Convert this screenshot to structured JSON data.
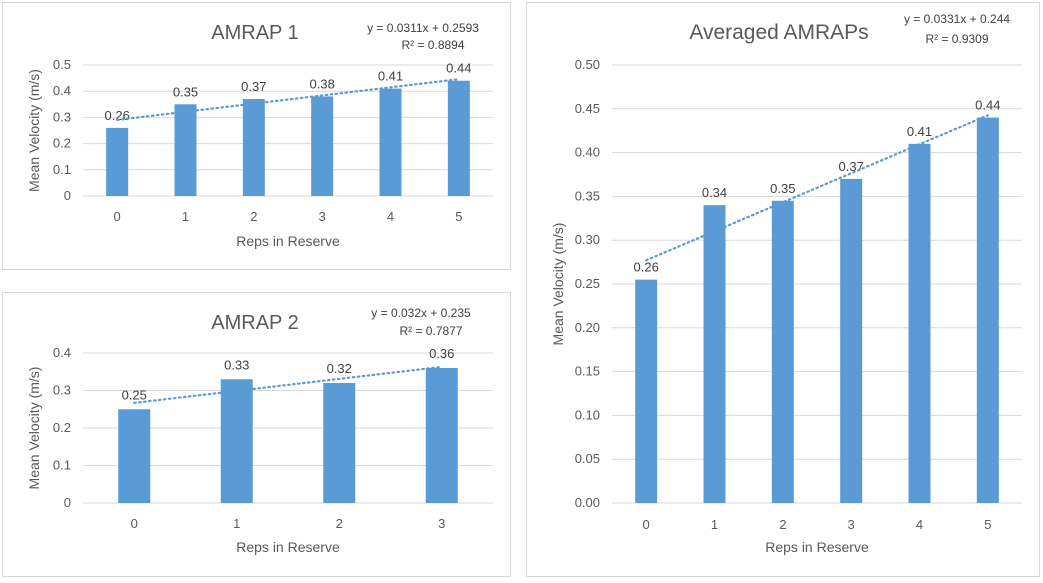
{
  "chart_data": [
    {
      "type": "bar",
      "title": "AMRAP 1",
      "xlabel": "Reps in Reserve",
      "ylabel": "Mean Velocity (m/s)",
      "categories": [
        "0",
        "1",
        "2",
        "3",
        "4",
        "5"
      ],
      "values": [
        0.26,
        0.35,
        0.37,
        0.38,
        0.41,
        0.44
      ],
      "data_labels": [
        "0.26",
        "0.35",
        "0.37",
        "0.38",
        "0.41",
        "0.44"
      ],
      "ylim": [
        0,
        0.5
      ],
      "yticks": [
        0,
        0.1,
        0.2,
        0.3,
        0.4,
        0.5
      ],
      "ytick_labels": [
        "0",
        "0.1",
        "0.2",
        "0.3",
        "0.4",
        "0.5"
      ],
      "trendline": {
        "type": "linear",
        "slope": 0.0311,
        "intercept": 0.2593
      },
      "equation": "y = 0.0311x + 0.2593",
      "r_squared": "R² = 0.8894",
      "bar_color": "#5b9bd5",
      "grid": true
    },
    {
      "type": "bar",
      "title": "AMRAP 2",
      "xlabel": "Reps in Reserve",
      "ylabel": "Mean Velocity (m/s)",
      "categories": [
        "0",
        "1",
        "2",
        "3"
      ],
      "values": [
        0.25,
        0.33,
        0.32,
        0.36
      ],
      "data_labels": [
        "0.25",
        "0.33",
        "0.32",
        "0.36"
      ],
      "ylim": [
        0,
        0.4
      ],
      "yticks": [
        0,
        0.1,
        0.2,
        0.3,
        0.4
      ],
      "ytick_labels": [
        "0",
        "0.1",
        "0.2",
        "0.3",
        "0.4"
      ],
      "trendline": {
        "type": "linear",
        "slope": 0.032,
        "intercept": 0.235
      },
      "equation": "y = 0.032x + 0.235",
      "r_squared": "R² = 0.7877",
      "bar_color": "#5b9bd5",
      "grid": true
    },
    {
      "type": "bar",
      "title": "Averaged AMRAPs",
      "xlabel": "Reps in Reserve",
      "ylabel": "Mean Velocity (m/s)",
      "categories": [
        "0",
        "1",
        "2",
        "3",
        "4",
        "5"
      ],
      "values": [
        0.255,
        0.34,
        0.345,
        0.37,
        0.41,
        0.44
      ],
      "data_labels": [
        "0.26",
        "0.34",
        "0.35",
        "0.37",
        "0.41",
        "0.44"
      ],
      "ylim": [
        0,
        0.5
      ],
      "yticks": [
        0,
        0.05,
        0.1,
        0.15,
        0.2,
        0.25,
        0.3,
        0.35,
        0.4,
        0.45,
        0.5
      ],
      "ytick_labels": [
        "0.00",
        "0.05",
        "0.10",
        "0.15",
        "0.20",
        "0.25",
        "0.30",
        "0.35",
        "0.40",
        "0.45",
        "0.50"
      ],
      "trendline": {
        "type": "linear",
        "slope": 0.0331,
        "intercept": 0.244
      },
      "equation": "y = 0.0331x + 0.244",
      "r_squared": "R² = 0.9309",
      "bar_color": "#5b9bd5",
      "grid": true
    }
  ]
}
